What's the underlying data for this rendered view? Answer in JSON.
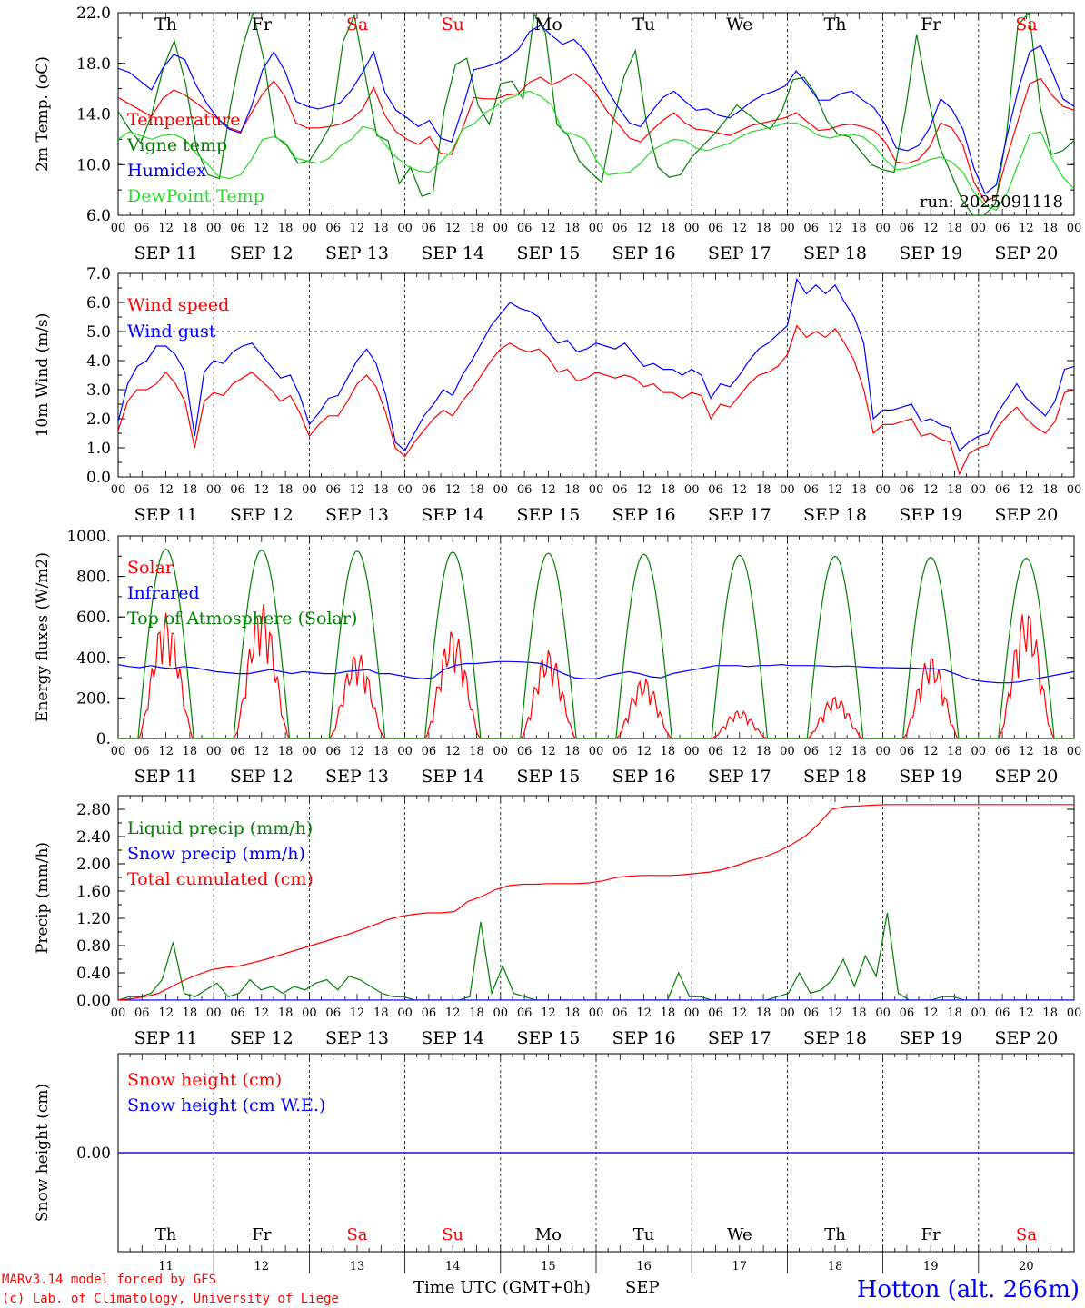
{
  "colors": {
    "red": "#ff0000",
    "dark_green": "#008000",
    "blue": "#0000ff",
    "light_green": "#22dd22",
    "black": "#000000"
  },
  "days": {
    "weekday_labels": [
      "Th",
      "Fr",
      "Sa",
      "Su",
      "Mo",
      "Tu",
      "We",
      "Th",
      "Fr",
      "Sa"
    ],
    "weekend_color": "#ff0000",
    "weekday_color": "#000000",
    "weekend_flags": [
      false,
      false,
      true,
      true,
      false,
      false,
      false,
      false,
      false,
      true
    ],
    "date_labels": [
      "SEP 11",
      "SEP 12",
      "SEP 13",
      "SEP 14",
      "SEP 15",
      "SEP 16",
      "SEP 17",
      "SEP 18",
      "SEP 19",
      "SEP 20"
    ],
    "day_numbers": [
      "11",
      "12",
      "13",
      "14",
      "15",
      "16",
      "17",
      "18",
      "19",
      "20"
    ],
    "hour_labels": [
      "00",
      "06",
      "12",
      "18"
    ],
    "final_hour_label": "00"
  },
  "footer": {
    "model_line": "MARv3.14 model forced by GFS",
    "copyright_line": "(c) Lab. of Climatology, University of Liege",
    "xlabel": "Time UTC (GMT+0h)",
    "month": "SEP",
    "station": "Hotton (alt. 266m)"
  },
  "chart_data": [
    {
      "type": "line",
      "id": "temperature",
      "ylabel": "2m Temp. (oC)",
      "ylim": [
        6.0,
        22.0
      ],
      "yticks": [
        "6.0",
        "10.0",
        "14.0",
        "18.0",
        "22.0"
      ],
      "ytick_values": [
        6,
        10,
        14,
        18,
        22
      ],
      "run_label": "run: 2025091118",
      "grid": "vertical dashed at midnight",
      "legend_placement": "left",
      "x": "hours since SEP 11 00 UTC, 3-hourly",
      "series": [
        {
          "name": "Temperature",
          "color": "#ff0000",
          "values": [
            15.3,
            14.8,
            14.3,
            13.8,
            15.2,
            15.9,
            15.5,
            14.9,
            14.2,
            13.6,
            12.9,
            12.6,
            14.1,
            15.6,
            16.6,
            15.4,
            13.3,
            12.9,
            12.9,
            13.0,
            13.2,
            13.6,
            14.4,
            16.1,
            13.9,
            12.6,
            12.0,
            11.6,
            12.2,
            10.9,
            10.8,
            12.9,
            15.3,
            15.2,
            15.2,
            15.5,
            15.6,
            16.5,
            16.9,
            16.3,
            16.7,
            17.2,
            16.6,
            15.6,
            14.2,
            13.2,
            12.1,
            11.8,
            12.7,
            13.5,
            14.1,
            13.3,
            12.8,
            12.7,
            12.5,
            12.3,
            12.7,
            13.1,
            13.3,
            13.5,
            13.7,
            14.1,
            13.4,
            12.7,
            12.8,
            13.1,
            13.2,
            13.0,
            12.7,
            11.8,
            10.2,
            10.1,
            10.4,
            11.4,
            13.3,
            12.9,
            11.5,
            8.6,
            7.1,
            7.5,
            10.7,
            13.6,
            16.4,
            16.8,
            15.5,
            14.6,
            14.3
          ]
        },
        {
          "name": "Vigne temp",
          "color": "#008000",
          "values": [
            14.2,
            12.8,
            11.7,
            14.0,
            17.6,
            19.8,
            16.4,
            11.2,
            9.2,
            8.9,
            14.7,
            19.1,
            22.0,
            18.1,
            12.2,
            11.5,
            10.1,
            10.3,
            11.7,
            13.3,
            19.7,
            21.8,
            16.9,
            12.3,
            11.9,
            8.5,
            9.8,
            7.5,
            7.8,
            14.3,
            17.9,
            18.4,
            14.7,
            13.2,
            16.4,
            16.6,
            15.2,
            21.9,
            20.4,
            13.2,
            12.3,
            10.3,
            9.4,
            8.6,
            13.4,
            17.0,
            19.0,
            13.2,
            9.8,
            9.0,
            9.2,
            10.6,
            11.5,
            12.4,
            13.5,
            14.7,
            14.0,
            13.3,
            12.8,
            14.2,
            16.7,
            16.9,
            15.6,
            13.5,
            12.4,
            12.2,
            11.1,
            10.0,
            9.6,
            9.4,
            14.3,
            20.3,
            15.4,
            11.5,
            9.4,
            7.3,
            6.0,
            6.0,
            6.9,
            12.4,
            21.0,
            22.0,
            14.5,
            10.8,
            11.1,
            11.9
          ]
        },
        {
          "name": "Humidex",
          "color": "#0000ff",
          "values": [
            17.6,
            17.3,
            16.6,
            15.9,
            17.6,
            18.7,
            18.3,
            16.3,
            14.8,
            13.6,
            12.8,
            12.5,
            14.6,
            17.5,
            18.9,
            17.4,
            15.0,
            14.6,
            14.4,
            14.6,
            14.9,
            15.9,
            17.3,
            18.9,
            15.7,
            14.3,
            13.7,
            13.0,
            13.5,
            12.1,
            11.8,
            14.5,
            17.5,
            17.7,
            18.0,
            18.4,
            19.1,
            20.5,
            21.0,
            20.2,
            19.5,
            19.9,
            19.0,
            17.5,
            15.9,
            14.5,
            13.3,
            13.0,
            14.2,
            15.3,
            15.8,
            15.0,
            14.3,
            14.4,
            13.9,
            13.7,
            14.3,
            15.0,
            15.5,
            15.8,
            16.2,
            17.4,
            16.3,
            15.1,
            15.1,
            15.6,
            15.8,
            15.1,
            14.5,
            13.2,
            11.3,
            11.1,
            11.5,
            12.9,
            15.2,
            14.4,
            12.8,
            9.7,
            7.7,
            8.4,
            12.4,
            16.0,
            18.9,
            19.4,
            17.4,
            15.2,
            14.6
          ]
        },
        {
          "name": "DewPoint Temp",
          "color": "#22dd22",
          "values": [
            12.0,
            12.6,
            12.3,
            12.0,
            12.3,
            12.4,
            12.0,
            10.9,
            10.1,
            9.1,
            8.9,
            9.2,
            10.4,
            12.0,
            12.2,
            11.8,
            10.5,
            10.3,
            10.1,
            10.5,
            11.5,
            12.0,
            13.0,
            12.8,
            11.6,
            10.6,
            9.9,
            9.5,
            9.4,
            10.2,
            11.1,
            12.8,
            13.2,
            14.1,
            14.6,
            15.2,
            15.5,
            15.8,
            15.4,
            14.7,
            12.6,
            12.4,
            12.0,
            10.4,
            9.2,
            9.3,
            9.4,
            10.1,
            11.1,
            11.6,
            12.0,
            11.9,
            11.3,
            11.1,
            11.4,
            11.7,
            12.2,
            12.6,
            12.8,
            13.0,
            13.3,
            13.3,
            12.9,
            12.3,
            12.1,
            12.3,
            12.4,
            12.2,
            11.5,
            10.4,
            9.6,
            9.7,
            10.0,
            10.4,
            10.6,
            10.2,
            9.4,
            7.8,
            6.8,
            6.4,
            7.8,
            10.1,
            12.4,
            12.6,
            10.5,
            9.0,
            8.1
          ]
        }
      ]
    },
    {
      "type": "line",
      "id": "wind",
      "ylabel": "10m Wind (m/s)",
      "ylim": [
        0.0,
        7.0
      ],
      "yticks": [
        "0.0",
        "1.0",
        "2.0",
        "3.0",
        "4.0",
        "5.0",
        "6.0",
        "7.0"
      ],
      "ytick_values": [
        0,
        1,
        2,
        3,
        4,
        5,
        6,
        7
      ],
      "reference_line": 5.0,
      "legend_placement": "left",
      "series": [
        {
          "name": "Wind speed",
          "color": "#ff0000",
          "values": [
            1.6,
            2.6,
            3.0,
            3.0,
            3.2,
            3.6,
            3.2,
            2.6,
            1.0,
            2.6,
            2.9,
            2.8,
            3.2,
            3.4,
            3.6,
            3.3,
            3.0,
            2.6,
            2.8,
            2.2,
            1.4,
            1.8,
            2.1,
            2.1,
            2.6,
            3.2,
            3.5,
            3.1,
            2.2,
            1.0,
            0.7,
            1.2,
            1.6,
            2.0,
            2.3,
            2.1,
            2.6,
            3.0,
            3.5,
            4.0,
            4.4,
            4.6,
            4.4,
            4.3,
            4.4,
            4.1,
            3.6,
            3.7,
            3.3,
            3.4,
            3.6,
            3.5,
            3.4,
            3.5,
            3.4,
            3.1,
            3.2,
            2.9,
            2.9,
            2.7,
            2.9,
            2.8,
            2.0,
            2.5,
            2.4,
            2.8,
            3.2,
            3.5,
            3.6,
            3.8,
            4.2,
            5.2,
            4.8,
            5.0,
            4.8,
            5.1,
            4.6,
            4.0,
            3.0,
            1.5,
            1.8,
            1.8,
            1.9,
            2.0,
            1.4,
            1.5,
            1.3,
            1.2,
            0.1,
            0.8,
            1.0,
            1.1,
            1.7,
            2.1,
            2.4,
            2.0,
            1.7,
            1.5,
            1.9,
            2.9,
            3.0
          ]
        },
        {
          "name": "Wind gust",
          "color": "#0000ff",
          "values": [
            1.9,
            3.2,
            3.8,
            4.0,
            4.5,
            4.5,
            4.2,
            3.6,
            1.4,
            3.6,
            4.0,
            3.9,
            4.3,
            4.5,
            4.6,
            4.2,
            3.8,
            3.4,
            3.5,
            2.8,
            1.8,
            2.2,
            2.7,
            2.8,
            3.4,
            4.0,
            4.4,
            3.9,
            2.8,
            1.2,
            0.9,
            1.5,
            2.1,
            2.5,
            3.0,
            2.8,
            3.5,
            4.0,
            4.6,
            5.2,
            5.6,
            6.0,
            5.8,
            5.7,
            5.5,
            5.0,
            4.6,
            4.7,
            4.3,
            4.4,
            4.6,
            4.5,
            4.4,
            4.6,
            4.2,
            3.8,
            3.9,
            3.7,
            3.7,
            3.5,
            3.7,
            3.5,
            2.7,
            3.2,
            3.1,
            3.5,
            4.0,
            4.4,
            4.6,
            4.9,
            5.2,
            6.8,
            6.3,
            6.6,
            6.3,
            6.6,
            6.0,
            5.5,
            4.6,
            2.0,
            2.3,
            2.3,
            2.4,
            2.5,
            1.9,
            2.0,
            1.8,
            1.7,
            0.9,
            1.2,
            1.4,
            1.5,
            2.2,
            2.7,
            3.2,
            2.7,
            2.4,
            2.1,
            2.6,
            3.7,
            3.8
          ]
        }
      ]
    },
    {
      "type": "line",
      "id": "energy",
      "ylabel": "Energy fluxes (W/m2)",
      "ylim": [
        0,
        1000
      ],
      "yticks": [
        "0.",
        "200.",
        "400.",
        "600.",
        "800.",
        "1000."
      ],
      "ytick_values": [
        0,
        200,
        400,
        600,
        800,
        1000
      ],
      "legend_placement": "left",
      "series": [
        {
          "name": "Solar",
          "color": "#ff0000",
          "daily_peaks": [
            620,
            670,
            430,
            540,
            440,
            300,
            140,
            210,
            410,
            640
          ]
        },
        {
          "name": "Infrared",
          "color": "#0000ff",
          "values": [
            365,
            355,
            350,
            360,
            350,
            345,
            355,
            350,
            340,
            330,
            325,
            320,
            320,
            330,
            340,
            330,
            320,
            330,
            325,
            320,
            320,
            330,
            335,
            340,
            320,
            320,
            310,
            300,
            295,
            300,
            340,
            360,
            370,
            370,
            375,
            380,
            380,
            378,
            375,
            370,
            345,
            320,
            300,
            295,
            295,
            310,
            320,
            330,
            320,
            305,
            300,
            320,
            330,
            340,
            350,
            360,
            360,
            360,
            355,
            360,
            360,
            365,
            360,
            360,
            360,
            358,
            355,
            358,
            355,
            352,
            350,
            350,
            348,
            348,
            345,
            345,
            340,
            320,
            300,
            285,
            280,
            275,
            275,
            280,
            290,
            300,
            310,
            320,
            330
          ]
        },
        {
          "name": "Top of Atmosphere (Solar)",
          "color": "#008000",
          "daily_peaks": [
            935,
            930,
            925,
            920,
            915,
            910,
            905,
            900,
            895,
            890
          ]
        }
      ]
    },
    {
      "type": "line",
      "id": "precip",
      "ylabel": "Precip (mm/h)",
      "ylim": [
        0.0,
        3.0
      ],
      "yticks": [
        "0.00",
        "0.40",
        "0.80",
        "1.20",
        "1.60",
        "2.00",
        "2.40",
        "2.80"
      ],
      "ytick_values": [
        0,
        0.4,
        0.8,
        1.2,
        1.6,
        2.0,
        2.4,
        2.8
      ],
      "legend_placement": "left",
      "series": [
        {
          "name": "Liquid precip (mm/h)",
          "color": "#008000",
          "values": [
            0.0,
            0.05,
            0.05,
            0.1,
            0.3,
            0.85,
            0.1,
            0.05,
            0.15,
            0.25,
            0.05,
            0.1,
            0.3,
            0.15,
            0.2,
            0.1,
            0.2,
            0.15,
            0.25,
            0.3,
            0.15,
            0.35,
            0.3,
            0.2,
            0.1,
            0.05,
            0.05,
            0.0,
            0.0,
            0.0,
            0.0,
            0.0,
            0.05,
            1.15,
            0.1,
            0.5,
            0.1,
            0.05,
            0.0,
            0.0,
            0.0,
            0.0,
            0.0,
            0.0,
            0.0,
            0.0,
            0.0,
            0.0,
            0.0,
            0.0,
            0.0,
            0.4,
            0.05,
            0.05,
            0.0,
            0.0,
            0.0,
            0.0,
            0.0,
            0.0,
            0.05,
            0.1,
            0.4,
            0.1,
            0.15,
            0.3,
            0.6,
            0.2,
            0.65,
            0.35,
            1.28,
            0.1,
            0.0,
            0.0,
            0.0,
            0.05,
            0.05,
            0.0,
            0.0,
            0.0,
            0.0,
            0.0,
            0.0,
            0.0,
            0.0,
            0.0,
            0.0,
            0.0
          ]
        },
        {
          "name": "Snow precip (mm/h)",
          "color": "#0000ff",
          "values": [
            0,
            0
          ]
        },
        {
          "name": "Total cumulated (cm)",
          "color": "#ff0000",
          "values": [
            0.0,
            0.02,
            0.05,
            0.1,
            0.2,
            0.3,
            0.38,
            0.45,
            0.48,
            0.5,
            0.55,
            0.6,
            0.66,
            0.72,
            0.78,
            0.84,
            0.9,
            0.96,
            1.03,
            1.1,
            1.18,
            1.23,
            1.26,
            1.28,
            1.28,
            1.3,
            1.45,
            1.52,
            1.62,
            1.68,
            1.7,
            1.7,
            1.71,
            1.71,
            1.71,
            1.72,
            1.75,
            1.8,
            1.82,
            1.83,
            1.83,
            1.83,
            1.84,
            1.86,
            1.88,
            1.92,
            1.98,
            2.05,
            2.1,
            2.18,
            2.28,
            2.4,
            2.58,
            2.8,
            2.84,
            2.85,
            2.86,
            2.87,
            2.87,
            2.87,
            2.87,
            2.87,
            2.87,
            2.87,
            2.87,
            2.87,
            2.87,
            2.87,
            2.87,
            2.87,
            2.87,
            2.87
          ]
        }
      ]
    },
    {
      "type": "line",
      "id": "snow",
      "ylabel": "Snow height (cm)",
      "ylim": [
        -1,
        1
      ],
      "yticks": [
        "0.00"
      ],
      "ytick_values": [
        0
      ],
      "legend_placement": "left",
      "series": [
        {
          "name": "Snow height (cm)",
          "color": "#ff0000",
          "values": [
            0,
            0
          ]
        },
        {
          "name": "Snow height (cm W.E.)",
          "color": "#0000ff",
          "values": [
            0,
            0
          ]
        }
      ]
    }
  ]
}
